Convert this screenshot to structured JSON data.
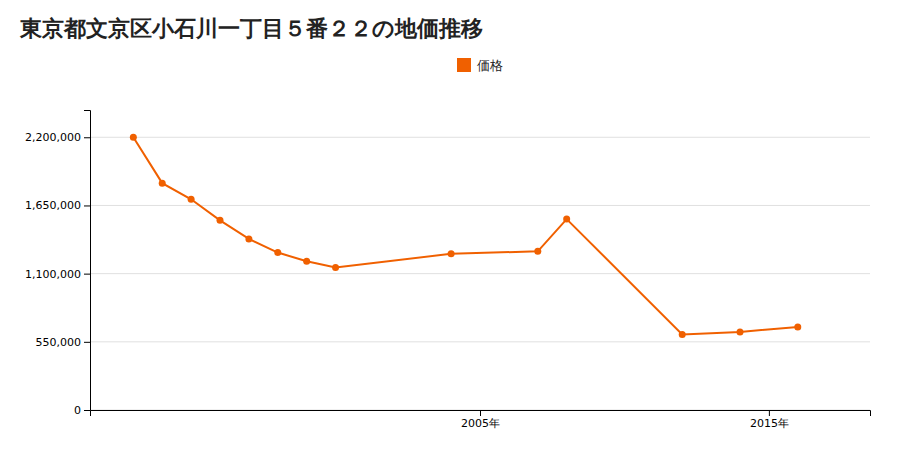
{
  "chart_data": {
    "type": "line",
    "title": "東京都文京区小石川一丁目５番２２の地価推移",
    "x": [
      1993,
      1994,
      1995,
      1996,
      1997,
      1998,
      1999,
      2000,
      2004,
      2007,
      2008,
      2012,
      2014,
      2016
    ],
    "series": [
      {
        "name": "価格",
        "color": "#f06000",
        "marker": "circle",
        "values": [
          2200000,
          1830000,
          1700000,
          1530000,
          1380000,
          1270000,
          1200000,
          1150000,
          1260000,
          1280000,
          1540000,
          610000,
          630000,
          670000
        ]
      }
    ],
    "xlim": [
      1991.5,
      2018.5
    ],
    "xticks": [
      {
        "value": 2005,
        "label": "2005年"
      },
      {
        "value": 2015,
        "label": "2015年"
      }
    ],
    "ylim": [
      0,
      2420000
    ],
    "yticks": [
      0,
      {
        "value": 550000,
        "label": "550,000"
      },
      {
        "value": 1100000,
        "label": "1,100,000"
      },
      {
        "value": 1650000,
        "label": "1,650,000"
      },
      {
        "value": 2200000,
        "label": "2,200,000"
      }
    ],
    "grid": true,
    "legend": "top"
  }
}
